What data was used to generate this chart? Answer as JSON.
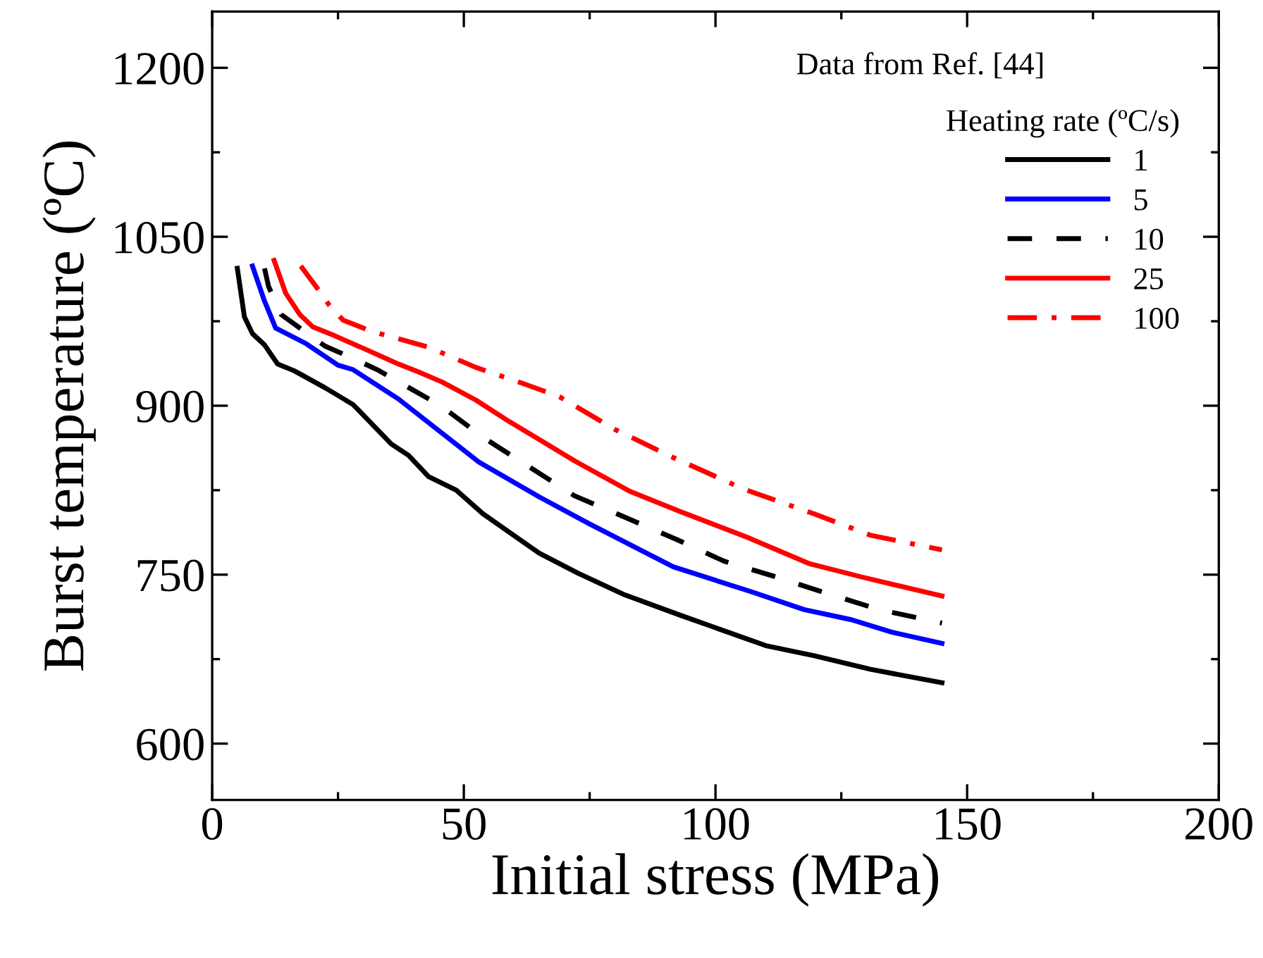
{
  "chart_data": {
    "type": "line",
    "xlabel": "Initial stress (MPa)",
    "ylabel": "Burst temperature (ºC)",
    "legend_title": "Heating rate (ºC/s)",
    "annotations": [
      "Data from Ref. [44]"
    ],
    "xlim": [
      0,
      200
    ],
    "xticks": [
      0,
      50,
      100,
      150,
      200
    ],
    "ylim": [
      550,
      1250
    ],
    "yticks": [
      600,
      750,
      900,
      1050,
      1200
    ],
    "grid": false,
    "legend": "top right",
    "marker": "none",
    "series": [
      {
        "name": "1",
        "color": "#000000",
        "line_style": "solid",
        "x": [
          5,
          6.4,
          8,
          10.4,
          13,
          16.3,
          22.4,
          28,
          35.6,
          39,
          43,
          48.5,
          53.8,
          65,
          72.8,
          82,
          93,
          110,
          119.6,
          130.8,
          145
        ],
        "values": [
          1022,
          979,
          964,
          954,
          937,
          931,
          916,
          901,
          866,
          856,
          837,
          825,
          804,
          769,
          751,
          732,
          714,
          687,
          678,
          666,
          654
        ]
      },
      {
        "name": "5",
        "color": "#0000ff",
        "line_style": "solid",
        "x": [
          8,
          10.3,
          12.6,
          18.7,
          25,
          28,
          37,
          53,
          65,
          75,
          91.6,
          107,
          117.6,
          127,
          135,
          145
        ],
        "values": [
          1024,
          994,
          969,
          955,
          936,
          932,
          906,
          850,
          819,
          795,
          757,
          735,
          719,
          710,
          699,
          689
        ]
      },
      {
        "name": "10",
        "color": "#000000",
        "line_style": "dashed",
        "x": [
          10.4,
          11.2,
          13.7,
          17.4,
          22.4,
          27,
          32.8,
          45.4,
          53.8,
          63.6,
          72,
          82,
          92.4,
          101.7,
          112,
          122.4,
          132.5,
          145
        ],
        "values": [
          1022,
          1006,
          981,
          969,
          953,
          944,
          932,
          900,
          872,
          844,
          820,
          801,
          781,
          762,
          748,
          733,
          719,
          707
        ]
      },
      {
        "name": "25",
        "color": "#ff0000",
        "line_style": "solid",
        "x": [
          12.3,
          14.6,
          17.4,
          20,
          24.4,
          30,
          37,
          41,
          45.7,
          52.4,
          59,
          65,
          72,
          83,
          93,
          106.4,
          118.5,
          129,
          145
        ],
        "values": [
          1029,
          1000,
          981,
          970,
          962,
          951,
          937,
          930,
          921,
          905,
          886,
          870,
          851,
          824,
          806,
          783,
          760,
          748,
          731
        ]
      },
      {
        "name": "100",
        "color": "#ff0000",
        "line_style": "dashdot",
        "x": [
          17.6,
          21.6,
          23.3,
          26,
          31.7,
          43,
          52.4,
          61.6,
          69,
          80,
          91.6,
          105.6,
          119.6,
          130.8,
          145
        ],
        "values": [
          1024,
          1000,
          989,
          976,
          966,
          952,
          934,
          920,
          908,
          879,
          854,
          826,
          804,
          785,
          772
        ]
      }
    ]
  }
}
